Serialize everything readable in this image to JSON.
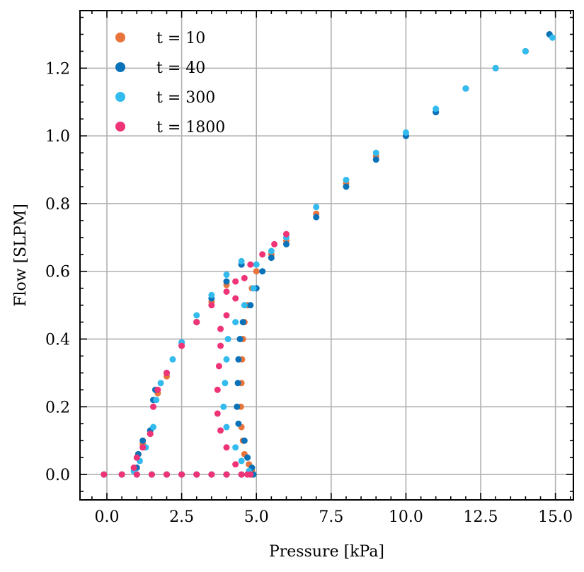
{
  "chart_data": {
    "type": "scatter",
    "title": "",
    "xlabel": "Pressure [kPa]",
    "ylabel": "Flow [SLPM]",
    "xlim": [
      -0.9,
      15.6
    ],
    "ylim": [
      -0.075,
      1.37
    ],
    "grid": true,
    "legend_position": "top-left",
    "x_ticks": [
      {
        "value": 0.0,
        "label": "0.0"
      },
      {
        "value": 2.5,
        "label": "2.5"
      },
      {
        "value": 5.0,
        "label": "5.0"
      },
      {
        "value": 7.5,
        "label": "7.5"
      },
      {
        "value": 10.0,
        "label": "10.0"
      },
      {
        "value": 12.5,
        "label": "12.5"
      },
      {
        "value": 15.0,
        "label": "15.0"
      }
    ],
    "y_ticks": [
      {
        "value": 0.0,
        "label": "0.0"
      },
      {
        "value": 0.2,
        "label": "0.2"
      },
      {
        "value": 0.4,
        "label": "0.4"
      },
      {
        "value": 0.6,
        "label": "0.6"
      },
      {
        "value": 0.8,
        "label": "0.8"
      },
      {
        "value": 1.0,
        "label": "1.0"
      },
      {
        "value": 1.2,
        "label": "1.2"
      }
    ],
    "series": [
      {
        "name": "t = 10",
        "color": "#E8743B",
        "points": [
          [
            -0.1,
            0.0
          ],
          [
            0.5,
            0.0
          ],
          [
            1.0,
            0.0
          ],
          [
            1.5,
            0.0
          ],
          [
            2.0,
            0.0
          ],
          [
            2.5,
            0.0
          ],
          [
            3.0,
            0.0
          ],
          [
            3.5,
            0.0
          ],
          [
            4.0,
            0.0
          ],
          [
            4.5,
            0.0
          ],
          [
            4.85,
            0.0
          ],
          [
            1.0,
            0.02
          ],
          [
            1.05,
            0.06
          ],
          [
            1.2,
            0.09
          ],
          [
            1.45,
            0.12
          ],
          [
            1.6,
            0.22
          ],
          [
            1.7,
            0.24
          ],
          [
            2.0,
            0.29
          ],
          [
            2.5,
            0.38
          ],
          [
            3.0,
            0.45
          ],
          [
            3.5,
            0.51
          ],
          [
            4.0,
            0.56
          ],
          [
            4.5,
            0.62
          ],
          [
            4.85,
            0.01
          ],
          [
            4.75,
            0.03
          ],
          [
            4.6,
            0.06
          ],
          [
            4.55,
            0.1
          ],
          [
            4.5,
            0.14
          ],
          [
            4.48,
            0.2
          ],
          [
            4.5,
            0.27
          ],
          [
            4.52,
            0.34
          ],
          [
            4.55,
            0.4
          ],
          [
            4.6,
            0.45
          ],
          [
            4.7,
            0.5
          ],
          [
            4.85,
            0.55
          ],
          [
            5.0,
            0.6
          ],
          [
            5.5,
            0.65
          ],
          [
            6.0,
            0.69
          ],
          [
            7.0,
            0.77
          ],
          [
            8.0,
            0.86
          ],
          [
            9.0,
            0.94
          ],
          [
            10.0,
            1.0
          ],
          [
            11.0,
            1.07
          ],
          [
            12.0,
            1.14
          ],
          [
            13.0,
            1.2
          ],
          [
            14.0,
            1.25
          ],
          [
            14.8,
            1.3
          ]
        ]
      },
      {
        "name": "t = 40",
        "color": "#0A72B8",
        "points": [
          [
            -0.1,
            0.0
          ],
          [
            0.5,
            0.0
          ],
          [
            1.0,
            0.0
          ],
          [
            1.5,
            0.0
          ],
          [
            2.0,
            0.0
          ],
          [
            2.5,
            0.0
          ],
          [
            3.0,
            0.0
          ],
          [
            3.5,
            0.0
          ],
          [
            4.0,
            0.0
          ],
          [
            4.5,
            0.0
          ],
          [
            4.9,
            0.0
          ],
          [
            1.0,
            0.02
          ],
          [
            1.05,
            0.06
          ],
          [
            1.2,
            0.1
          ],
          [
            1.45,
            0.13
          ],
          [
            1.55,
            0.22
          ],
          [
            1.62,
            0.25
          ],
          [
            2.0,
            0.3
          ],
          [
            2.5,
            0.39
          ],
          [
            3.0,
            0.45
          ],
          [
            3.5,
            0.52
          ],
          [
            4.0,
            0.57
          ],
          [
            4.5,
            0.62
          ],
          [
            4.85,
            0.02
          ],
          [
            4.7,
            0.05
          ],
          [
            4.6,
            0.1
          ],
          [
            4.4,
            0.15
          ],
          [
            4.35,
            0.2
          ],
          [
            4.38,
            0.27
          ],
          [
            4.4,
            0.34
          ],
          [
            4.45,
            0.4
          ],
          [
            4.55,
            0.45
          ],
          [
            4.8,
            0.5
          ],
          [
            5.0,
            0.55
          ],
          [
            5.2,
            0.6
          ],
          [
            5.5,
            0.64
          ],
          [
            6.0,
            0.68
          ],
          [
            7.0,
            0.76
          ],
          [
            8.0,
            0.85
          ],
          [
            9.0,
            0.93
          ],
          [
            10.0,
            1.0
          ],
          [
            11.0,
            1.07
          ],
          [
            12.0,
            1.14
          ],
          [
            13.0,
            1.2
          ],
          [
            14.0,
            1.25
          ],
          [
            14.8,
            1.3
          ]
        ]
      },
      {
        "name": "t = 300",
        "color": "#33BBEE",
        "points": [
          [
            -0.1,
            0.0
          ],
          [
            0.5,
            0.0
          ],
          [
            1.0,
            0.0
          ],
          [
            1.5,
            0.0
          ],
          [
            2.0,
            0.0
          ],
          [
            2.5,
            0.0
          ],
          [
            3.0,
            0.0
          ],
          [
            3.5,
            0.0
          ],
          [
            4.0,
            0.0
          ],
          [
            4.5,
            0.0
          ],
          [
            4.8,
            0.0
          ],
          [
            0.9,
            0.01
          ],
          [
            1.1,
            0.04
          ],
          [
            1.3,
            0.08
          ],
          [
            1.55,
            0.14
          ],
          [
            1.65,
            0.22
          ],
          [
            1.8,
            0.27
          ],
          [
            2.2,
            0.34
          ],
          [
            2.5,
            0.39
          ],
          [
            3.0,
            0.47
          ],
          [
            3.5,
            0.53
          ],
          [
            4.0,
            0.59
          ],
          [
            4.5,
            0.63
          ],
          [
            4.75,
            0.01
          ],
          [
            4.5,
            0.04
          ],
          [
            4.3,
            0.08
          ],
          [
            4.0,
            0.14
          ],
          [
            3.9,
            0.2
          ],
          [
            3.95,
            0.27
          ],
          [
            4.0,
            0.34
          ],
          [
            4.05,
            0.4
          ],
          [
            4.3,
            0.45
          ],
          [
            4.6,
            0.5
          ],
          [
            4.9,
            0.55
          ],
          [
            5.0,
            0.62
          ],
          [
            5.5,
            0.66
          ],
          [
            6.0,
            0.7
          ],
          [
            7.0,
            0.79
          ],
          [
            8.0,
            0.87
          ],
          [
            9.0,
            0.95
          ],
          [
            10.0,
            1.01
          ],
          [
            11.0,
            1.08
          ],
          [
            12.0,
            1.14
          ],
          [
            13.0,
            1.2
          ],
          [
            14.0,
            1.25
          ],
          [
            14.9,
            1.29
          ]
        ]
      },
      {
        "name": "t = 1800",
        "color": "#EE3377",
        "points": [
          [
            -0.1,
            0.0
          ],
          [
            0.5,
            0.0
          ],
          [
            1.0,
            0.0
          ],
          [
            1.5,
            0.0
          ],
          [
            2.0,
            0.0
          ],
          [
            2.5,
            0.0
          ],
          [
            3.0,
            0.0
          ],
          [
            3.5,
            0.0
          ],
          [
            4.0,
            0.0
          ],
          [
            4.5,
            0.0
          ],
          [
            4.8,
            0.0
          ],
          [
            0.9,
            0.02
          ],
          [
            1.0,
            0.05
          ],
          [
            1.2,
            0.08
          ],
          [
            1.45,
            0.12
          ],
          [
            1.55,
            0.2
          ],
          [
            1.7,
            0.25
          ],
          [
            2.0,
            0.3
          ],
          [
            2.5,
            0.38
          ],
          [
            3.0,
            0.45
          ],
          [
            3.5,
            0.5
          ],
          [
            4.0,
            0.54
          ],
          [
            4.3,
            0.57
          ],
          [
            4.7,
            0.0
          ],
          [
            4.3,
            0.03
          ],
          [
            4.0,
            0.08
          ],
          [
            3.8,
            0.13
          ],
          [
            3.7,
            0.18
          ],
          [
            3.7,
            0.25
          ],
          [
            3.75,
            0.32
          ],
          [
            3.8,
            0.38
          ],
          [
            3.8,
            0.43
          ],
          [
            4.0,
            0.47
          ],
          [
            4.3,
            0.52
          ],
          [
            4.6,
            0.58
          ],
          [
            4.8,
            0.62
          ],
          [
            5.2,
            0.65
          ],
          [
            5.6,
            0.68
          ],
          [
            6.0,
            0.71
          ]
        ]
      }
    ]
  }
}
